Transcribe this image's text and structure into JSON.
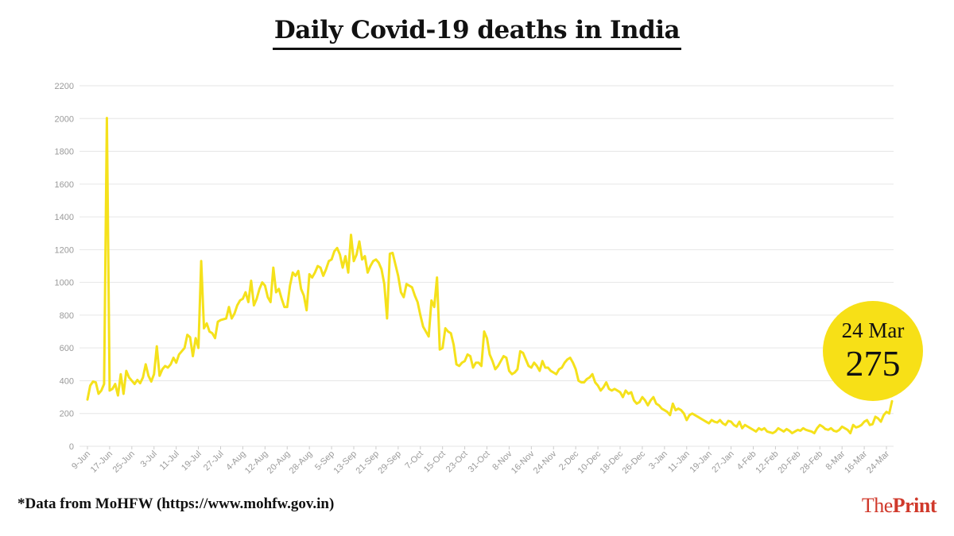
{
  "chart_data": {
    "type": "line",
    "title": "Daily Covid-19 deaths in India",
    "xlabel": "",
    "ylabel": "",
    "ylim": [
      0,
      2200
    ],
    "yticks": [
      0,
      200,
      400,
      600,
      800,
      1000,
      1200,
      1400,
      1600,
      1800,
      2000,
      2200
    ],
    "xticks": [
      "9-Jun",
      "17-Jun",
      "25-Jun",
      "3-Jul",
      "11-Jul",
      "19-Jul",
      "27-Jul",
      "4-Aug",
      "12-Aug",
      "20-Aug",
      "28-Aug",
      "5-Sep",
      "13-Sep",
      "21-Sep",
      "29-Sep",
      "7-Oct",
      "15-Oct",
      "23-Oct",
      "31-Oct",
      "8-Nov",
      "16-Nov",
      "24-Nov",
      "2-Dec",
      "10-Dec",
      "18-Dec",
      "26-Dec",
      "3-Jan",
      "11-Jan",
      "19-Jan",
      "27-Jan",
      "4-Feb",
      "12-Feb",
      "20-Feb",
      "28-Feb",
      "8-Mar",
      "16-Mar",
      "24-Mar"
    ],
    "grid": true,
    "line_color": "#f5e11b",
    "series": [
      {
        "name": "",
        "values": [
          285,
          370,
          395,
          390,
          320,
          340,
          380,
          2003,
          340,
          350,
          380,
          310,
          440,
          320,
          460,
          420,
          400,
          380,
          405,
          385,
          420,
          500,
          430,
          395,
          440,
          610,
          430,
          470,
          490,
          480,
          500,
          540,
          510,
          560,
          580,
          600,
          680,
          665,
          550,
          660,
          600,
          1130,
          720,
          750,
          700,
          690,
          660,
          760,
          770,
          775,
          780,
          850,
          780,
          810,
          860,
          890,
          900,
          940,
          880,
          1010,
          860,
          900,
          960,
          1000,
          980,
          910,
          880,
          1090,
          940,
          960,
          900,
          850,
          850,
          980,
          1060,
          1040,
          1070,
          960,
          920,
          830,
          1050,
          1030,
          1060,
          1100,
          1090,
          1040,
          1080,
          1130,
          1140,
          1190,
          1210,
          1170,
          1090,
          1160,
          1060,
          1290,
          1130,
          1170,
          1250,
          1140,
          1160,
          1060,
          1100,
          1130,
          1140,
          1120,
          1080,
          990,
          780,
          1175,
          1180,
          1110,
          1040,
          940,
          910,
          990,
          980,
          970,
          920,
          880,
          800,
          730,
          700,
          670,
          890,
          850,
          1030,
          590,
          600,
          720,
          700,
          690,
          620,
          500,
          490,
          510,
          520,
          560,
          550,
          480,
          510,
          510,
          490,
          700,
          660,
          560,
          520,
          470,
          490,
          520,
          550,
          540,
          460,
          440,
          450,
          470,
          580,
          570,
          530,
          490,
          480,
          510,
          490,
          460,
          520,
          480,
          480,
          460,
          450,
          440,
          470,
          480,
          510,
          530,
          540,
          510,
          470,
          400,
          390,
          390,
          410,
          420,
          440,
          390,
          370,
          340,
          360,
          390,
          350,
          340,
          350,
          340,
          330,
          300,
          340,
          320,
          330,
          280,
          260,
          270,
          300,
          280,
          250,
          280,
          300,
          260,
          250,
          230,
          220,
          210,
          190,
          260,
          220,
          230,
          220,
          200,
          160,
          190,
          200,
          190,
          180,
          170,
          160,
          150,
          140,
          160,
          150,
          145,
          160,
          140,
          130,
          155,
          150,
          130,
          120,
          150,
          110,
          130,
          120,
          110,
          100,
          90,
          110,
          100,
          110,
          90,
          85,
          80,
          90,
          110,
          100,
          90,
          105,
          95,
          80,
          90,
          100,
          95,
          110,
          100,
          95,
          90,
          80,
          110,
          130,
          120,
          105,
          100,
          110,
          95,
          90,
          100,
          120,
          110,
          100,
          80,
          130,
          115,
          120,
          130,
          150,
          160,
          130,
          135,
          180,
          170,
          150,
          190,
          210,
          200,
          275
        ]
      }
    ],
    "annotation": {
      "date": "24 Mar",
      "value": "275",
      "color": "#f7e017"
    }
  },
  "footnote": "*Data from MoHFW (https://www.mohfw.gov.in)",
  "logo": {
    "part1": "The",
    "part2": "Print",
    "color": "#d0392b"
  }
}
